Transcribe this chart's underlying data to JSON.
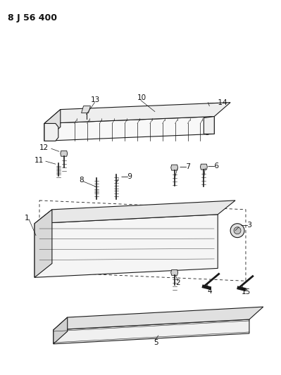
{
  "title": "8 J 56 400",
  "background_color": "#ffffff",
  "line_color": "#1a1a1a",
  "label_color": "#111111",
  "fig_width": 3.99,
  "fig_height": 5.33,
  "dpi": 100
}
